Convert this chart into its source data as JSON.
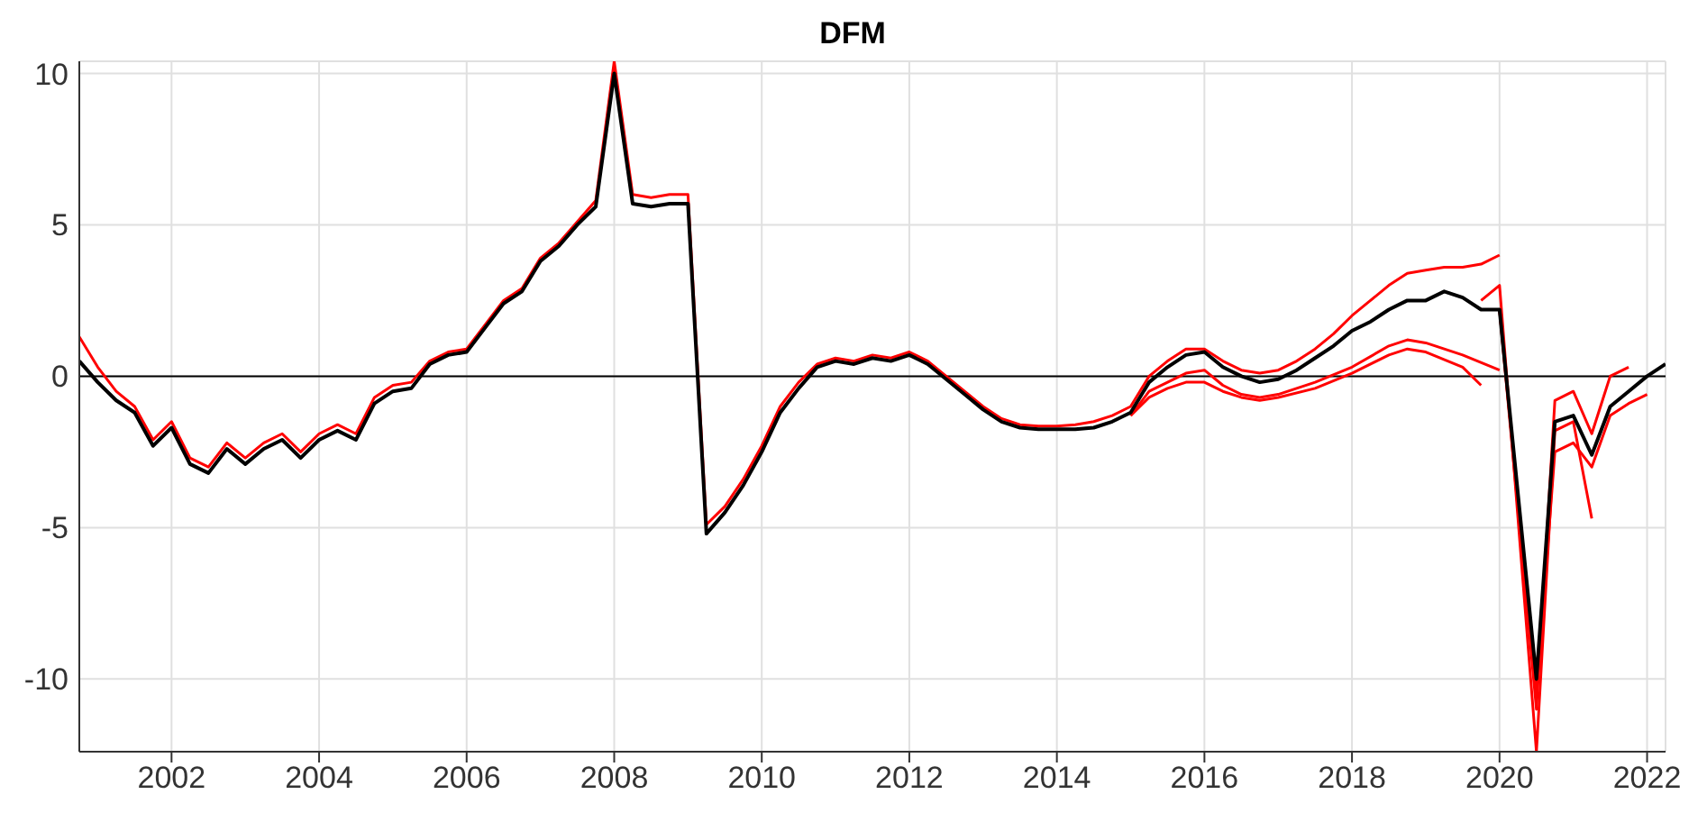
{
  "chart_data": {
    "type": "line",
    "title": "DFM",
    "xlim": [
      2000.75,
      2022.25
    ],
    "xticks": [
      2002,
      2004,
      2006,
      2008,
      2010,
      2012,
      2014,
      2016,
      2018,
      2020,
      2022
    ],
    "ylim": [
      -12.4,
      10.4
    ],
    "yticks": [
      -10,
      -5,
      0,
      5,
      10
    ],
    "grid": true,
    "marker": "none",
    "line_style": "solid",
    "ref_lines": [
      {
        "axis": "y",
        "value": 0,
        "color": "#000000"
      }
    ],
    "series": [
      {
        "color": "#ff0000",
        "x": [
          2000.75,
          2001,
          2001.25,
          2001.5,
          2001.75,
          2002,
          2002.25,
          2002.5,
          2002.75,
          2003,
          2003.25,
          2003.5,
          2003.75,
          2004,
          2004.25,
          2004.5,
          2004.75,
          2005,
          2005.25,
          2005.5,
          2005.75,
          2006,
          2006.25,
          2006.5,
          2006.75,
          2007,
          2007.25,
          2007.5,
          2007.75,
          2008,
          2008.25,
          2008.5,
          2008.75,
          2009,
          2009.25,
          2009.5,
          2009.75,
          2010,
          2010.25,
          2010.5,
          2010.75,
          2011,
          2011.25,
          2011.5,
          2011.75,
          2012,
          2012.25,
          2012.5,
          2012.75,
          2013,
          2013.25,
          2013.5,
          2013.75,
          2014,
          2014.25,
          2014.5,
          2014.75,
          2015,
          2015.25,
          2015.5,
          2015.75,
          2016,
          2016.25,
          2016.5,
          2016.75,
          2017,
          2017.25,
          2017.5,
          2017.75,
          2018,
          2018.25,
          2018.5,
          2018.75,
          2019,
          2019.25,
          2019.5,
          2019.75,
          2020
        ],
        "values": [
          1.3,
          0.3,
          -0.5,
          -1.0,
          -2.1,
          -1.5,
          -2.7,
          -3.0,
          -2.2,
          -2.7,
          -2.2,
          -1.9,
          -2.5,
          -1.9,
          -1.6,
          -1.9,
          -0.7,
          -0.3,
          -0.2,
          0.5,
          0.8,
          0.9,
          1.7,
          2.5,
          2.9,
          3.9,
          4.4,
          5.1,
          5.8,
          10.4,
          6.0,
          5.9,
          6.0,
          6.0,
          -4.9,
          -4.3,
          -3.4,
          -2.3,
          -1.0,
          -0.2,
          0.4,
          0.6,
          0.5,
          0.7,
          0.6,
          0.8,
          0.5,
          0.0,
          -0.5,
          -1.0,
          -1.4,
          -1.6,
          -1.65,
          -1.65,
          -1.6,
          -1.5,
          -1.3,
          -1.0,
          0.0,
          0.5,
          0.9,
          0.9,
          0.5,
          0.2,
          0.1,
          0.2,
          0.5,
          0.9,
          1.4,
          2.0,
          2.5,
          3.0,
          3.4,
          3.5,
          3.6,
          3.6,
          3.7,
          4.0
        ]
      },
      {
        "color": "#ff0000",
        "x": [
          2015,
          2015.25,
          2015.5,
          2015.75,
          2016,
          2016.25,
          2016.5,
          2016.75,
          2017,
          2017.5,
          2018,
          2018.5,
          2018.75,
          2019,
          2019.5,
          2019.75
        ],
        "values": [
          -1.3,
          -0.7,
          -0.4,
          -0.2,
          -0.2,
          -0.5,
          -0.7,
          -0.8,
          -0.7,
          -0.4,
          0.1,
          0.7,
          0.9,
          0.8,
          0.3,
          -0.3
        ]
      },
      {
        "color": "#ff0000",
        "x": [
          2015,
          2015.25,
          2015.5,
          2015.75,
          2016,
          2016.25,
          2016.5,
          2016.75,
          2017,
          2017.5,
          2018,
          2018.5,
          2018.75,
          2019,
          2019.5,
          2020
        ],
        "values": [
          -1.3,
          -0.5,
          -0.2,
          0.1,
          0.2,
          -0.3,
          -0.6,
          -0.7,
          -0.6,
          -0.2,
          0.3,
          1.0,
          1.2,
          1.1,
          0.7,
          0.2
        ]
      },
      {
        "color": "#ff0000",
        "x": [
          2019.75,
          2020,
          2020.5,
          2020.75,
          2021,
          2021.25
        ],
        "values": [
          2.5,
          3.0,
          -12.4,
          -1.8,
          -1.5,
          -4.7
        ]
      },
      {
        "color": "#ff0000",
        "x": [
          2020,
          2020.5,
          2020.75,
          2021,
          2021.25,
          2021.5,
          2021.75
        ],
        "values": [
          2.2,
          -11.0,
          -0.8,
          -0.5,
          -1.9,
          0.0,
          0.3
        ]
      },
      {
        "color": "#ff0000",
        "x": [
          2020,
          2020.5,
          2020.75,
          2021,
          2021.25,
          2021.5,
          2021.75,
          2022
        ],
        "values": [
          2.2,
          -10.5,
          -2.5,
          -2.2,
          -3.0,
          -1.3,
          -0.9,
          -0.6
        ]
      },
      {
        "color": "#000000",
        "x": [
          2000.75,
          2001,
          2001.25,
          2001.5,
          2001.75,
          2002,
          2002.25,
          2002.5,
          2002.75,
          2003,
          2003.25,
          2003.5,
          2003.75,
          2004,
          2004.25,
          2004.5,
          2004.75,
          2005,
          2005.25,
          2005.5,
          2005.75,
          2006,
          2006.25,
          2006.5,
          2006.75,
          2007,
          2007.25,
          2007.5,
          2007.75,
          2008,
          2008.25,
          2008.5,
          2008.75,
          2009,
          2009.25,
          2009.5,
          2009.75,
          2010,
          2010.25,
          2010.5,
          2010.75,
          2011,
          2011.25,
          2011.5,
          2011.75,
          2012,
          2012.25,
          2012.5,
          2012.75,
          2013,
          2013.25,
          2013.5,
          2013.75,
          2014,
          2014.25,
          2014.5,
          2014.75,
          2015,
          2015.25,
          2015.5,
          2015.75,
          2016,
          2016.25,
          2016.5,
          2016.75,
          2017,
          2017.25,
          2017.5,
          2017.75,
          2018,
          2018.25,
          2018.5,
          2018.75,
          2019,
          2019.25,
          2019.5,
          2019.75,
          2020,
          2020.25,
          2020.5,
          2020.75,
          2021,
          2021.25,
          2021.5,
          2021.75,
          2022,
          2022.25
        ],
        "values": [
          0.5,
          -0.2,
          -0.8,
          -1.2,
          -2.3,
          -1.7,
          -2.9,
          -3.2,
          -2.4,
          -2.9,
          -2.4,
          -2.1,
          -2.7,
          -2.1,
          -1.8,
          -2.1,
          -0.9,
          -0.5,
          -0.4,
          0.4,
          0.7,
          0.8,
          1.6,
          2.4,
          2.8,
          3.8,
          4.3,
          5.0,
          5.6,
          10.0,
          5.7,
          5.6,
          5.7,
          5.7,
          -5.2,
          -4.5,
          -3.6,
          -2.5,
          -1.2,
          -0.4,
          0.3,
          0.5,
          0.4,
          0.6,
          0.5,
          0.7,
          0.4,
          -0.1,
          -0.6,
          -1.1,
          -1.5,
          -1.7,
          -1.75,
          -1.75,
          -1.75,
          -1.7,
          -1.5,
          -1.2,
          -0.2,
          0.3,
          0.7,
          0.8,
          0.3,
          0.0,
          -0.2,
          -0.1,
          0.2,
          0.6,
          1.0,
          1.5,
          1.8,
          2.2,
          2.5,
          2.5,
          2.8,
          2.6,
          2.2,
          2.2,
          -3.9,
          -10.0,
          -1.5,
          -1.3,
          -2.6,
          -1.0,
          -0.5,
          0.0,
          0.4
        ]
      }
    ]
  }
}
